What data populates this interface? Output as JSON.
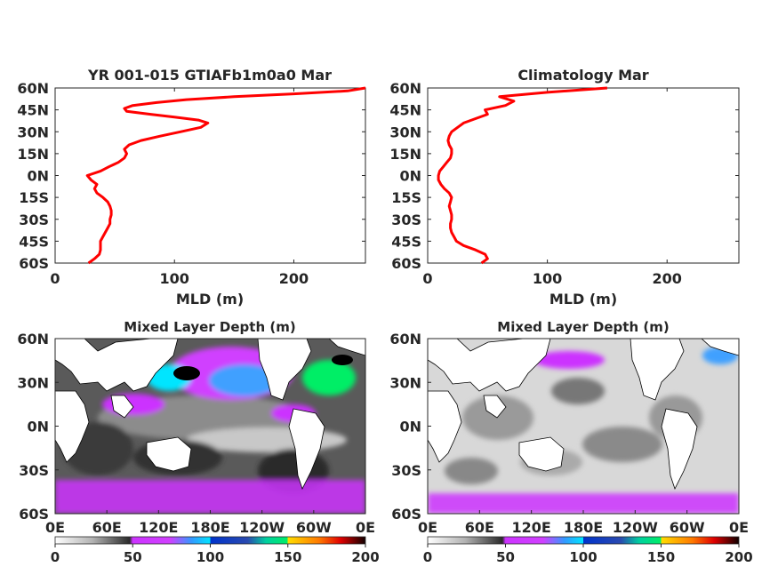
{
  "chart_data": [
    {
      "type": "line",
      "title": "YR 001-015 GTIAFb1m0a0 Mar",
      "xlabel": "MLD (m)",
      "ylabel": "",
      "xlim": [
        0,
        260
      ],
      "ylim": [
        -60,
        60
      ],
      "xticks": [
        0,
        100,
        200
      ],
      "xtick_labels": [
        "0",
        "100",
        "200"
      ],
      "yticks": [
        60,
        45,
        30,
        15,
        0,
        -15,
        -30,
        -45,
        -60
      ],
      "ytick_labels": [
        "60N",
        "45N",
        "30N",
        "15N",
        "0N",
        "15S",
        "30S",
        "45S",
        "60S"
      ],
      "line_color": "#ff0000",
      "series": [
        {
          "lat": [
            -60,
            -57,
            -54,
            -51,
            -48,
            -45,
            -42,
            -39,
            -36,
            -33,
            -30,
            -27,
            -24,
            -21,
            -18,
            -15,
            -12,
            -9,
            -6,
            -3,
            0,
            3,
            6,
            9,
            12,
            15,
            18,
            21,
            24,
            27,
            30,
            33,
            36,
            38,
            40,
            42,
            44,
            46,
            48,
            50,
            52,
            54,
            56,
            58,
            60
          ],
          "mld": [
            28,
            33,
            37,
            38,
            38,
            38,
            40,
            42,
            44,
            46,
            46,
            47,
            47,
            46,
            44,
            40,
            35,
            33,
            35,
            30,
            27,
            38,
            45,
            53,
            58,
            60,
            58,
            62,
            72,
            88,
            105,
            122,
            128,
            120,
            100,
            80,
            60,
            58,
            65,
            85,
            110,
            150,
            200,
            245,
            260
          ]
        }
      ]
    },
    {
      "type": "line",
      "title": "Climatology Mar",
      "xlabel": "MLD (m)",
      "ylabel": "",
      "xlim": [
        0,
        260
      ],
      "ylim": [
        -60,
        60
      ],
      "xticks": [
        0,
        100,
        200
      ],
      "xtick_labels": [
        "0",
        "100",
        "200"
      ],
      "yticks": [
        60,
        45,
        30,
        15,
        0,
        -15,
        -30,
        -45,
        -60
      ],
      "ytick_labels": [
        "60N",
        "45N",
        "30N",
        "15N",
        "0N",
        "15S",
        "30S",
        "45S",
        "60S"
      ],
      "line_color": "#ff0000",
      "series": [
        {
          "lat": [
            -60,
            -57,
            -54,
            -51,
            -48,
            -45,
            -42,
            -39,
            -36,
            -33,
            -30,
            -27,
            -24,
            -21,
            -18,
            -15,
            -12,
            -9,
            -6,
            -3,
            0,
            3,
            6,
            9,
            12,
            15,
            18,
            21,
            24,
            27,
            30,
            33,
            36,
            39,
            42,
            45,
            48,
            51,
            54,
            57,
            60
          ],
          "mld": [
            45,
            50,
            48,
            40,
            30,
            24,
            22,
            20,
            19,
            19,
            20,
            20,
            19,
            18,
            19,
            20,
            18,
            14,
            11,
            9,
            9,
            10,
            13,
            16,
            19,
            20,
            20,
            18,
            17,
            18,
            20,
            25,
            30,
            40,
            50,
            48,
            65,
            72,
            60,
            100,
            150
          ]
        }
      ]
    },
    {
      "type": "heatmap",
      "title": "Mixed Layer Depth (m)",
      "xtick_labels": [
        "0E",
        "60E",
        "120E",
        "180E",
        "120W",
        "60W",
        "0E"
      ],
      "ytick_labels": [
        "60N",
        "30N",
        "0N",
        "30S",
        "60S"
      ],
      "colorbar_ticks": [
        "0",
        "50",
        "100",
        "150",
        "200"
      ],
      "clim": [
        0,
        200
      ]
    },
    {
      "type": "heatmap",
      "title": "Mixed Layer Depth (m)",
      "xtick_labels": [
        "0E",
        "60E",
        "120E",
        "180E",
        "120W",
        "60W",
        "0E"
      ],
      "ytick_labels": [
        "60N",
        "30N",
        "0N",
        "30S",
        "60S"
      ],
      "colorbar_ticks": [
        "0",
        "50",
        "100",
        "150",
        "200"
      ],
      "clim": [
        0,
        200
      ]
    }
  ],
  "colormap": {
    "stops": [
      "#ffffff",
      "#9a9a9a",
      "#000000",
      "#ff00ff",
      "#00ffff",
      "#0000ff",
      "#00ff66",
      "#ffff00",
      "#ff0000",
      "#000000"
    ]
  }
}
